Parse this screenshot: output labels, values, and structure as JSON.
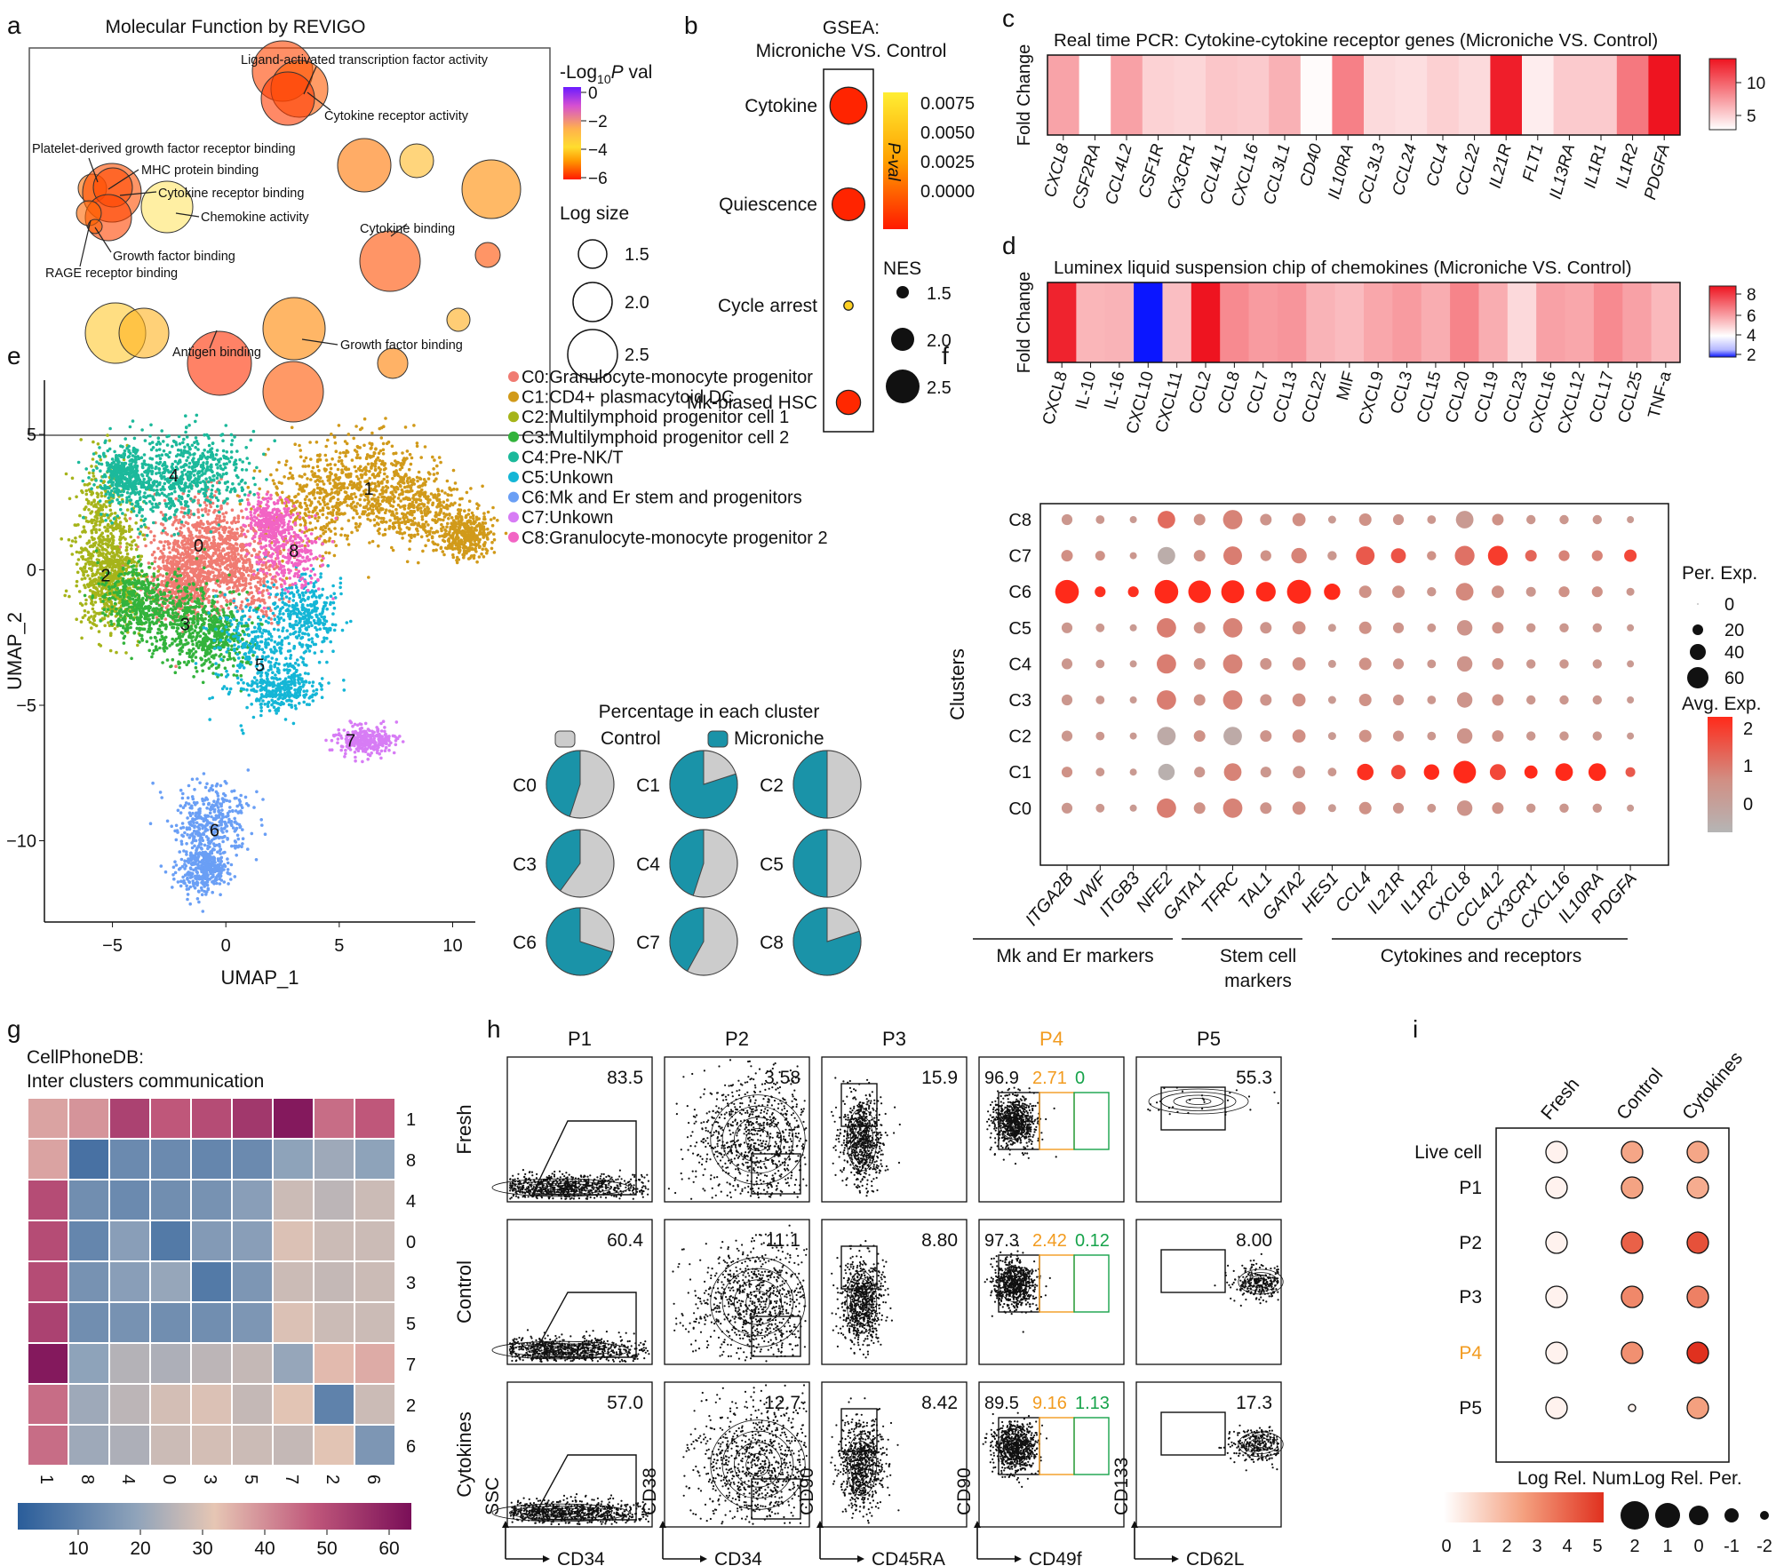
{
  "panel_letters": [
    "a",
    "b",
    "c",
    "d",
    "e",
    "f",
    "g",
    "h",
    "i"
  ],
  "colors": {
    "red": "#e8222a",
    "teal": "#1a93a8",
    "grey": "#cccccc",
    "orange": "#f29b1f",
    "green": "#16a34a"
  },
  "chart_data": [
    {
      "id": "a",
      "type": "scatter",
      "title": "Molecular Function by REVIGO",
      "color_legend": {
        "title": "-Log10P val",
        "ticks": [
          "0",
          "−2",
          "−4",
          "−6"
        ],
        "range": [
          -6,
          0
        ]
      },
      "size_legend": {
        "title": "Log size",
        "labels": [
          "1.5",
          "2.0",
          "2.5"
        ]
      },
      "terms": [
        "Ligand-activated transcription factor activity",
        "Cytokine receptor activity",
        "Platelet-derived growth factor receptor binding",
        "MHC protein binding",
        "Cytokine receptor binding",
        "Chemokine activity",
        "Growth factor binding",
        "RAGE receptor binding",
        "Cytokine binding",
        "Growth factor binding",
        "Antigen binding"
      ]
    },
    {
      "id": "b",
      "type": "scatter",
      "title": "GSEA:",
      "subtitle": "Microniche VS. Control",
      "categories": [
        "Cytokine",
        "Quiescence",
        "Cycle arrest",
        "Mk-biased HSC"
      ],
      "nes": [
        2.4,
        2.2,
        1.1,
        1.8
      ],
      "pval": [
        0.0001,
        0.0001,
        0.0075,
        0.0003
      ],
      "colorbar": {
        "title": "P-val",
        "ticks": [
          "0.0075",
          "0.0050",
          "0.0025",
          "0.0000"
        ]
      },
      "size_legend": {
        "title": "NES",
        "labels": [
          "1.5",
          "2.0",
          "2.5"
        ]
      }
    },
    {
      "id": "c",
      "type": "heatmap",
      "title": "Real time PCR: Cytokine-cytokine receptor genes (Microniche VS. Control)",
      "ylabel": "Fold Change",
      "categories": [
        "CXCL8",
        "CSF2RA",
        "CCL4L2",
        "CSF1R",
        "CX3CR1",
        "CCL4L1",
        "CXCL16",
        "CCL3L1",
        "CD40",
        "IL10RA",
        "CCL3L3",
        "CCL24",
        "CCL4",
        "CCL22",
        "IL21R",
        "FLT1",
        "IL13RA",
        "IL1R1",
        "IL1R2",
        "PDGFA"
      ],
      "values": [
        5.5,
        1.0,
        5.6,
        3.2,
        3.0,
        3.8,
        3.6,
        4.8,
        1.2,
        7.2,
        2.8,
        2.6,
        3.3,
        2.8,
        12.0,
        1.9,
        3.6,
        3.6,
        7.6,
        12.5
      ],
      "colorbar_ticks": [
        "10",
        "5"
      ]
    },
    {
      "id": "d",
      "type": "heatmap",
      "title": "Luminex liquid suspension chip of chemokines (Microniche VS. Control)",
      "ylabel": "Fold Change",
      "categories": [
        "CXCL8",
        "IL-10",
        "IL-16",
        "CXCL10",
        "CXCL11",
        "CCL2",
        "CCL8",
        "CCL7",
        "CCL13",
        "CCL22",
        "MIF",
        "CXCL9",
        "CCL3",
        "CCL15",
        "CCL20",
        "CCL19",
        "CCL23",
        "CXCL16",
        "CXCL12",
        "CCL17",
        "CCL25",
        "TNF-a"
      ],
      "values": [
        8.5,
        3.5,
        3.6,
        1.0,
        3.2,
        9.0,
        5.0,
        4.4,
        4.6,
        3.6,
        3.3,
        4.0,
        4.4,
        3.8,
        5.2,
        3.8,
        2.3,
        4.2,
        4.0,
        5.0,
        4.2,
        3.4
      ],
      "colorbar_ticks": [
        "8",
        "6",
        "4",
        "2"
      ]
    },
    {
      "id": "e",
      "type": "scatter",
      "xlabel": "UMAP_1",
      "ylabel": "UMAP_2",
      "xlim": [
        -8,
        11
      ],
      "ylim": [
        -13,
        7
      ],
      "xticks": [
        "−5",
        "0",
        "5",
        "10"
      ],
      "yticks": [
        "5",
        "0",
        "−5",
        "−10"
      ],
      "legend": [
        "C0:Granulocyte-monocyte progenitor",
        "C1:CD4+ plasmacytoid DC",
        "C2:Multilymphoid progenitor cell 1",
        "C3:Multilymphoid progenitor cell 2",
        "C4:Pre-NK/T",
        "C5:Unkown",
        "C6:Mk and Er stem and progenitors",
        "C7:Unkown",
        "C8:Granulocyte-monocyte progenitor 2"
      ],
      "cluster_labels": [
        "0",
        "1",
        "2",
        "3",
        "4",
        "5",
        "6",
        "7",
        "8"
      ],
      "pie_title": "Percentage in each cluster",
      "pie_legend": [
        "Control",
        "Microniche"
      ],
      "pies": [
        {
          "name": "C0",
          "microniche": 0.45
        },
        {
          "name": "C1",
          "microniche": 0.8
        },
        {
          "name": "C2",
          "microniche": 0.5
        },
        {
          "name": "C3",
          "microniche": 0.4
        },
        {
          "name": "C4",
          "microniche": 0.45
        },
        {
          "name": "C5",
          "microniche": 0.5
        },
        {
          "name": "C6",
          "microniche": 0.7
        },
        {
          "name": "C7",
          "microniche": 0.42
        },
        {
          "name": "C8",
          "microniche": 0.8
        }
      ]
    },
    {
      "id": "f",
      "type": "scatter",
      "ylabel": "Clusters",
      "clusters": [
        "C8",
        "C7",
        "C6",
        "C5",
        "C4",
        "C3",
        "C2",
        "C1",
        "C0"
      ],
      "genes": [
        "ITGA2B",
        "VWF",
        "ITGB3",
        "NFE2",
        "GATA1",
        "TFRC",
        "TAL1",
        "GATA2",
        "HES1",
        "CCL4",
        "IL21R",
        "IL1R2",
        "CXCL8",
        "CCL4L2",
        "CX3CR1",
        "CXCL16",
        "IL10RA",
        "PDGFA"
      ],
      "groups": [
        "Mk and Er markers",
        "Stem cell\nmarkers",
        "Cytokines and receptors"
      ],
      "size_legend": {
        "title": "Per. Exp.",
        "labels": [
          "0",
          "20",
          "40",
          "60"
        ]
      },
      "color_legend": {
        "title": "Avg. Exp.",
        "labels": [
          "2",
          "1",
          "0"
        ]
      }
    },
    {
      "id": "g",
      "type": "heatmap",
      "title": "CellPhoneDB:",
      "subtitle": "Inter clusters communication",
      "rows": [
        "1",
        "8",
        "4",
        "0",
        "3",
        "5",
        "7",
        "2",
        "6"
      ],
      "cols": [
        "1",
        "8",
        "4",
        "0",
        "3",
        "5",
        "7",
        "2",
        "6"
      ],
      "values": [
        [
          38,
          40,
          52,
          48,
          50,
          54,
          60,
          45,
          48
        ],
        [
          38,
          10,
          16,
          16,
          15,
          16,
          22,
          24,
          22
        ],
        [
          50,
          17,
          16,
          17,
          18,
          21,
          30,
          28,
          30
        ],
        [
          50,
          15,
          21,
          12,
          20,
          21,
          32,
          30,
          30
        ],
        [
          50,
          18,
          21,
          23,
          12,
          19,
          30,
          29,
          30
        ],
        [
          52,
          17,
          18,
          17,
          17,
          19,
          32,
          30,
          30
        ],
        [
          60,
          22,
          27,
          26,
          28,
          29,
          23,
          35,
          37
        ],
        [
          45,
          24,
          28,
          31,
          32,
          29,
          33,
          14,
          30
        ],
        [
          45,
          24,
          26,
          30,
          31,
          30,
          29,
          33,
          19
        ]
      ],
      "colorbar_ticks": [
        "10",
        "20",
        "30",
        "40",
        "50",
        "60"
      ]
    },
    {
      "id": "h",
      "type": "scatter",
      "columns": [
        "P1",
        "P2",
        "P3",
        "P4",
        "P5"
      ],
      "rows": [
        "Fresh",
        "Control",
        "Cytokines"
      ],
      "xlabels": [
        "CD34",
        "CD34",
        "CD45RA",
        "CD49f",
        "CD62L"
      ],
      "ylabels": [
        "SSC",
        "CD38",
        "CD90",
        "CD90",
        "CD133"
      ],
      "gate_values": [
        [
          "83.5",
          "3.58",
          "15.9",
          [
            "96.9",
            "2.71",
            "0"
          ],
          "55.3"
        ],
        [
          "60.4",
          "11.1",
          "8.80",
          [
            "97.3",
            "2.42",
            "0.12"
          ],
          "8.00"
        ],
        [
          "57.0",
          "12.7",
          "8.42",
          [
            "89.5",
            "9.16",
            "1.13"
          ],
          "17.3"
        ]
      ]
    },
    {
      "id": "i",
      "type": "scatter",
      "columns": [
        "Fresh",
        "Control",
        "Cytokines"
      ],
      "rows": [
        "Live cell",
        "P1",
        "P2",
        "P3",
        "P4",
        "P5"
      ],
      "rel_num": [
        [
          0,
          2.6,
          2.6
        ],
        [
          0,
          2.7,
          2.4
        ],
        [
          0,
          4.4,
          4.8
        ],
        [
          0,
          3.4,
          3.6
        ],
        [
          0,
          3.2,
          5.6
        ],
        [
          0,
          0,
          2.8
        ]
      ],
      "size_legend": {
        "title": "Log Rel. Per.",
        "labels": [
          "2",
          "1",
          "0",
          "-1",
          "-2"
        ]
      },
      "color_legend": {
        "title": "Log Rel. Num.",
        "labels": [
          "0",
          "1",
          "2",
          "3",
          "4",
          "5"
        ]
      }
    }
  ]
}
